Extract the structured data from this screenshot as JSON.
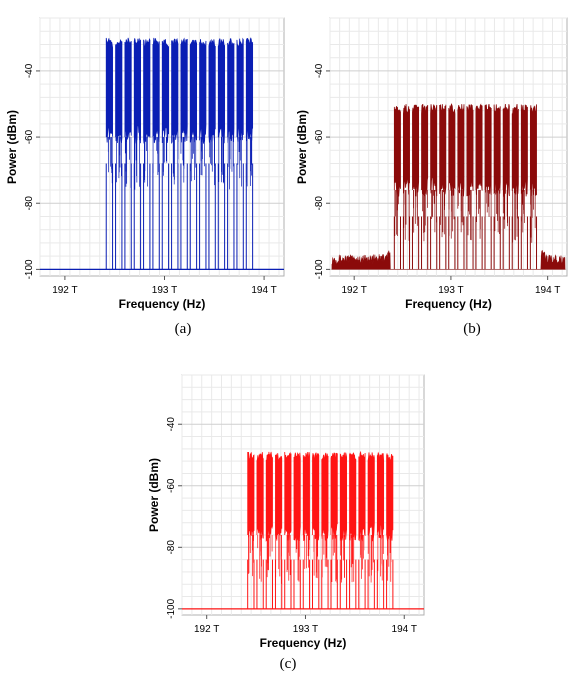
{
  "panels_caption": {
    "a": "(a)",
    "b": "(b)",
    "c": "(c)"
  },
  "chart_data": [
    {
      "id": "a",
      "type": "line",
      "title": "",
      "xlabel": "Frequency (Hz)",
      "ylabel": "Power (dBm)",
      "x_unit": "THz",
      "xlim": [
        191.75,
        194.2
      ],
      "ylim": [
        -102,
        -24
      ],
      "x_ticks": [
        {
          "value": 192,
          "label": "192 T"
        },
        {
          "value": 193,
          "label": "193 T"
        },
        {
          "value": 194,
          "label": "194 T"
        }
      ],
      "y_ticks": [
        {
          "value": -40,
          "label": "-40"
        },
        {
          "value": -60,
          "label": "-60"
        },
        {
          "value": -80,
          "label": "-80"
        },
        {
          "value": -100,
          "label": "-100"
        }
      ],
      "grid": true,
      "color": "#0a1eb4",
      "floor_dbm": -100,
      "channel_count": 16,
      "channel_start": 192.4,
      "channel_end": 193.9,
      "channel_peak_dbm": -30,
      "channel_body_dbm": -58,
      "noise_floor": false
    },
    {
      "id": "b",
      "type": "line",
      "title": "",
      "xlabel": "Frequency (Hz)",
      "ylabel": "Power (dBm)",
      "x_unit": "THz",
      "xlim": [
        191.75,
        194.2
      ],
      "ylim": [
        -102,
        -24
      ],
      "x_ticks": [
        {
          "value": 192,
          "label": "192 T"
        },
        {
          "value": 193,
          "label": "193 T"
        },
        {
          "value": 194,
          "label": "194 T"
        }
      ],
      "y_ticks": [
        {
          "value": -40,
          "label": "-40"
        },
        {
          "value": -60,
          "label": "-60"
        },
        {
          "value": -80,
          "label": "-80"
        },
        {
          "value": -100,
          "label": "-100"
        }
      ],
      "grid": true,
      "color": "#8b0a0a",
      "floor_dbm": -100,
      "channel_count": 16,
      "channel_start": 192.4,
      "channel_end": 193.9,
      "channel_peak_dbm": -50,
      "channel_body_dbm": -74,
      "noise_floor": true,
      "noise_floor_dbm": -97
    },
    {
      "id": "c",
      "type": "line",
      "title": "",
      "xlabel": "Frequency (Hz)",
      "ylabel": "Power (dBm)",
      "x_unit": "THz",
      "xlim": [
        191.75,
        194.2
      ],
      "ylim": [
        -102,
        -24
      ],
      "x_ticks": [
        {
          "value": 192,
          "label": "192 T"
        },
        {
          "value": 193,
          "label": "193 T"
        },
        {
          "value": 194,
          "label": "194 T"
        }
      ],
      "y_ticks": [
        {
          "value": -40,
          "label": "-40"
        },
        {
          "value": -60,
          "label": "-60"
        },
        {
          "value": -80,
          "label": "-80"
        },
        {
          "value": -100,
          "label": "-100"
        }
      ],
      "grid": true,
      "color": "#ff1414",
      "floor_dbm": -100,
      "channel_count": 16,
      "channel_start": 192.4,
      "channel_end": 193.9,
      "channel_peak_dbm": -49,
      "channel_body_dbm": -74,
      "noise_floor": false
    }
  ]
}
